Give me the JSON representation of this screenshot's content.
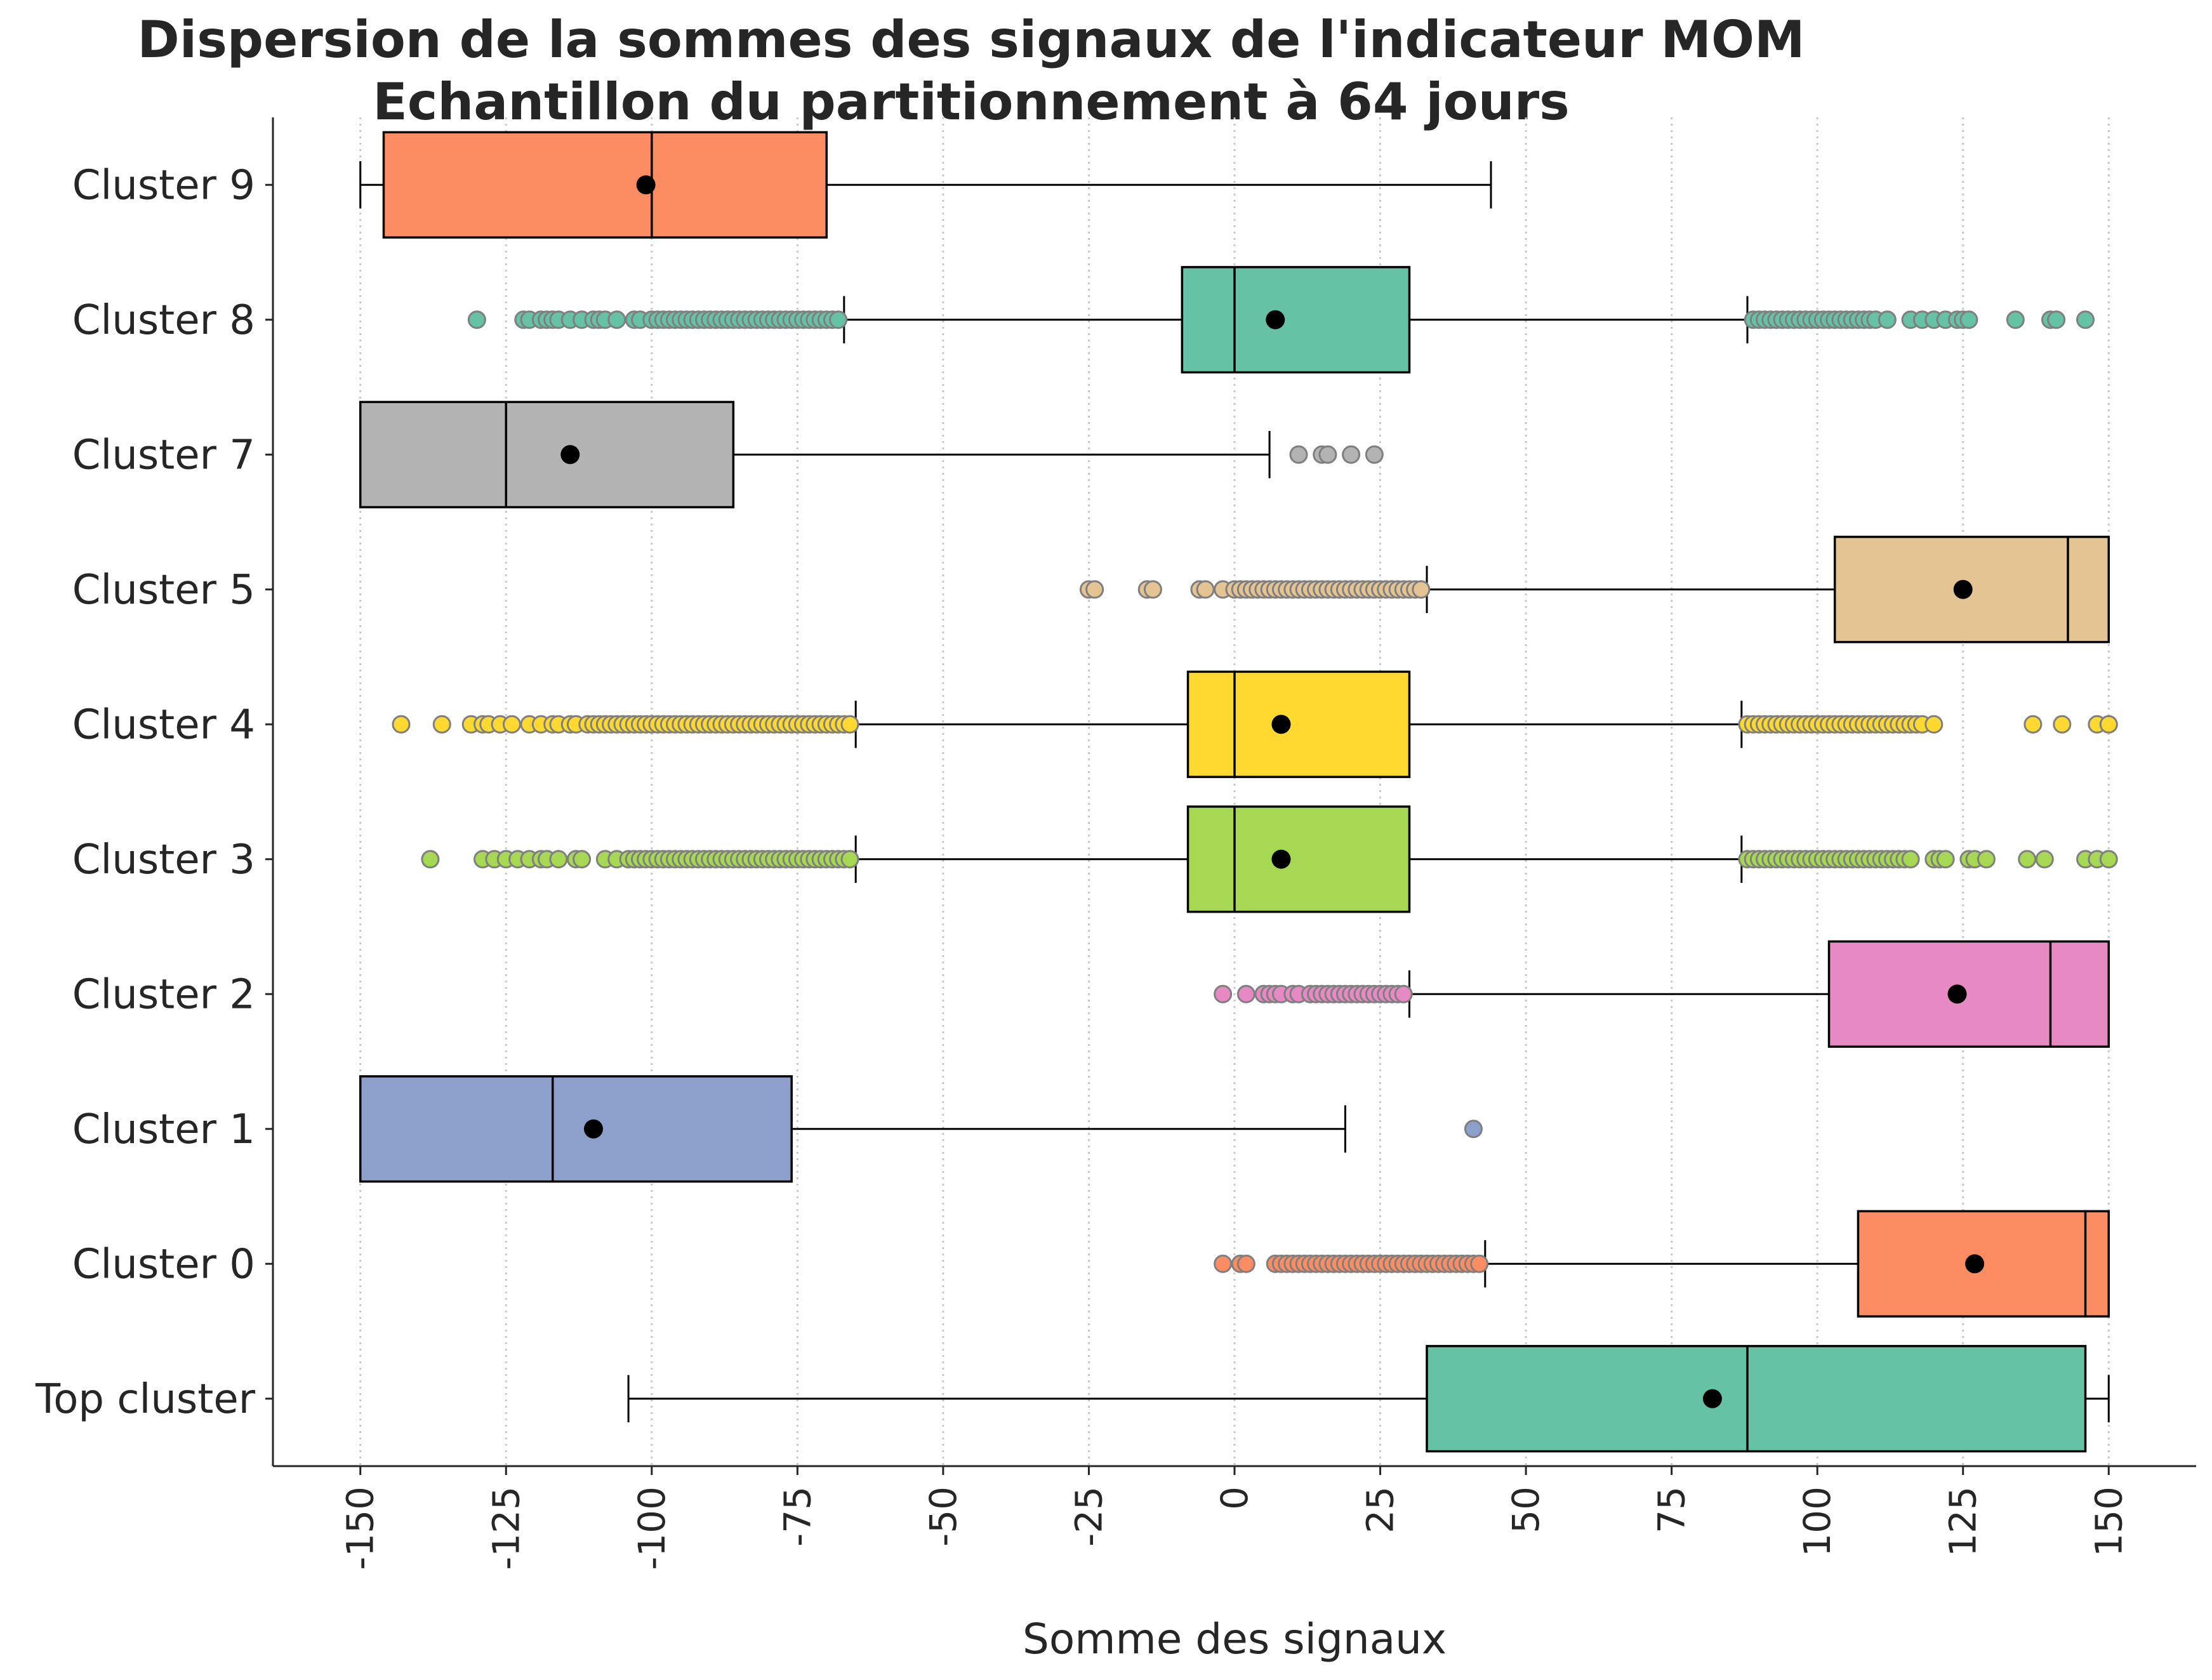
{
  "chart_data": {
    "type": "box",
    "orientation": "horizontal",
    "title_line1": "Dispersion de la sommes des signaux de l'indicateur MOM",
    "title_line2": "Echantillon du partitionnement à 64 jours",
    "xlabel": "Somme des signaux",
    "xlim": [
      -165,
      165
    ],
    "xticks": [
      -150,
      -125,
      -100,
      -75,
      -50,
      -25,
      0,
      25,
      50,
      75,
      100,
      125,
      150
    ],
    "grid": "vertical dotted",
    "categories": [
      "Cluster 9",
      "Cluster 8",
      "Cluster 7",
      "Cluster 5",
      "Cluster 4",
      "Cluster 3",
      "Cluster 2",
      "Cluster 1",
      "Cluster 0",
      "Top cluster"
    ],
    "boxes": [
      {
        "label": "Cluster 9",
        "color": "#fc8d62",
        "whislo": -150,
        "q1": -146,
        "med": -100,
        "q3": -70,
        "whishi": 44,
        "mean": -101,
        "fliers": []
      },
      {
        "label": "Cluster 8",
        "color": "#66c2a5",
        "whislo": -67,
        "q1": -9,
        "med": 0,
        "q3": 30,
        "whishi": 88,
        "mean": 7,
        "fliers": [
          -130,
          -122,
          -121,
          -119,
          -118,
          -117,
          -116,
          -114,
          -112,
          -110,
          -109,
          -108,
          -106,
          -103,
          -102,
          -100,
          -99,
          -98,
          -97,
          -96,
          -95,
          -94,
          -93,
          -92,
          -91,
          -90,
          -89,
          -88,
          -87,
          -86,
          -85,
          -84,
          -83,
          -82,
          -81,
          -80,
          -79,
          -78,
          -77,
          -76,
          -75,
          -74,
          -73,
          -72,
          -71,
          -70,
          -69,
          -68,
          89,
          90,
          91,
          92,
          93,
          94,
          95,
          96,
          97,
          98,
          99,
          100,
          101,
          102,
          103,
          104,
          105,
          106,
          107,
          108,
          109,
          110,
          112,
          116,
          118,
          120,
          122,
          124,
          125,
          126,
          134,
          140,
          141,
          146
        ]
      },
      {
        "label": "Cluster 7",
        "color": "#b3b3b3",
        "whislo": -150,
        "q1": -150,
        "med": -125,
        "q3": -86,
        "whishi": 6,
        "mean": -114,
        "fliers": [
          11,
          15,
          16,
          20,
          24
        ]
      },
      {
        "label": "Cluster 5",
        "color": "#e5c494",
        "whislo": 33,
        "q1": 103,
        "med": 143,
        "q3": 150,
        "whishi": 150,
        "mean": 125,
        "fliers": [
          -25,
          -24,
          -15,
          -14,
          -6,
          -5,
          -2,
          0,
          1,
          2,
          3,
          4,
          5,
          6,
          7,
          8,
          9,
          10,
          11,
          12,
          13,
          14,
          15,
          16,
          17,
          18,
          19,
          20,
          21,
          22,
          23,
          24,
          25,
          26,
          27,
          28,
          29,
          30,
          31,
          32
        ]
      },
      {
        "label": "Cluster 4",
        "color": "#ffd92f",
        "whislo": -65,
        "q1": -8,
        "med": 0,
        "q3": 30,
        "whishi": 87,
        "mean": 8,
        "fliers": [
          -143,
          -136,
          -131,
          -129,
          -128,
          -126,
          -124,
          -121,
          -119,
          -117,
          -116,
          -114,
          -113,
          -111,
          -110,
          -109,
          -108,
          -107,
          -106,
          -105,
          -104,
          -103,
          -102,
          -101,
          -100,
          -99,
          -98,
          -97,
          -96,
          -95,
          -94,
          -93,
          -92,
          -91,
          -90,
          -89,
          -88,
          -87,
          -86,
          -85,
          -84,
          -83,
          -82,
          -81,
          -80,
          -79,
          -78,
          -77,
          -76,
          -75,
          -74,
          -73,
          -72,
          -71,
          -70,
          -69,
          -68,
          -67,
          -66,
          88,
          89,
          90,
          91,
          92,
          93,
          94,
          95,
          96,
          97,
          98,
          99,
          100,
          101,
          102,
          103,
          104,
          105,
          106,
          107,
          108,
          109,
          110,
          111,
          112,
          113,
          114,
          115,
          116,
          117,
          118,
          120,
          137,
          142,
          148,
          150
        ]
      },
      {
        "label": "Cluster 3",
        "color": "#a6d854",
        "whislo": -65,
        "q1": -8,
        "med": 0,
        "q3": 30,
        "whishi": 87,
        "mean": 8,
        "fliers": [
          -138,
          -129,
          -127,
          -125,
          -123,
          -121,
          -119,
          -118,
          -116,
          -113,
          -112,
          -108,
          -106,
          -104,
          -103,
          -102,
          -101,
          -100,
          -99,
          -98,
          -97,
          -96,
          -95,
          -94,
          -93,
          -92,
          -91,
          -90,
          -89,
          -88,
          -87,
          -86,
          -85,
          -84,
          -83,
          -82,
          -81,
          -80,
          -79,
          -78,
          -77,
          -76,
          -75,
          -74,
          -73,
          -72,
          -71,
          -70,
          -69,
          -68,
          -67,
          -66,
          88,
          89,
          90,
          91,
          92,
          93,
          94,
          95,
          96,
          97,
          98,
          99,
          100,
          101,
          102,
          103,
          104,
          105,
          106,
          107,
          108,
          109,
          110,
          111,
          112,
          113,
          114,
          115,
          116,
          120,
          121,
          122,
          126,
          127,
          129,
          136,
          139,
          146,
          148,
          150
        ]
      },
      {
        "label": "Cluster 2",
        "color": "#e78ac3",
        "whislo": 30,
        "q1": 102,
        "med": 140,
        "q3": 150,
        "whishi": 150,
        "mean": 124,
        "fliers": [
          -2,
          2,
          5,
          6,
          7,
          8,
          10,
          11,
          13,
          14,
          15,
          16,
          17,
          18,
          19,
          20,
          21,
          22,
          23,
          24,
          25,
          26,
          27,
          28,
          29
        ]
      },
      {
        "label": "Cluster 1",
        "color": "#8da0cb",
        "whislo": -150,
        "q1": -150,
        "med": -117,
        "q3": -76,
        "whishi": 19,
        "mean": -110,
        "fliers": [
          41
        ]
      },
      {
        "label": "Cluster 0",
        "color": "#fc8d62",
        "whislo": 43,
        "q1": 107,
        "med": 146,
        "q3": 150,
        "whishi": 150,
        "mean": 127,
        "fliers": [
          -2,
          1,
          2,
          7,
          8,
          9,
          10,
          11,
          12,
          13,
          14,
          15,
          16,
          17,
          18,
          19,
          20,
          21,
          22,
          23,
          24,
          25,
          26,
          27,
          28,
          29,
          30,
          31,
          32,
          33,
          34,
          35,
          36,
          37,
          38,
          39,
          40,
          41,
          42
        ]
      },
      {
        "label": "Top cluster",
        "color": "#66c2a5",
        "whislo": -104,
        "q1": 33,
        "med": 88,
        "q3": 146,
        "whishi": 150,
        "mean": 82,
        "fliers": []
      }
    ]
  }
}
